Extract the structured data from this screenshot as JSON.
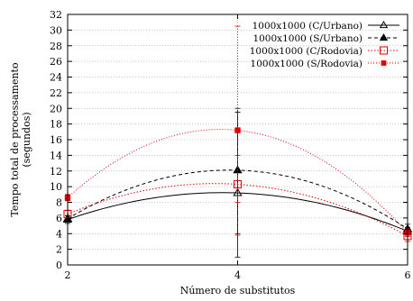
{
  "chart_data": {
    "type": "line",
    "title": "",
    "xlabel": "Número de substitutos",
    "ylabel_lines": [
      "Tempo total de processamento",
      "(segundos)"
    ],
    "x": [
      2,
      4,
      6
    ],
    "xlim": [
      2,
      6
    ],
    "ylim": [
      0,
      32
    ],
    "xticks": [
      2,
      4,
      6
    ],
    "yticks": [
      0,
      2,
      4,
      6,
      8,
      10,
      12,
      14,
      16,
      18,
      20,
      22,
      24,
      26,
      28,
      30,
      32
    ],
    "grid": true,
    "legend_position": "top-right",
    "series": [
      {
        "name": "1000x1000 (C/Urbano)",
        "values": [
          5.8,
          9.2,
          4.3
        ],
        "err_low": [
          5.3,
          1.0,
          3.8
        ],
        "err_high": [
          6.3,
          19.5,
          4.8
        ],
        "color": "#000000",
        "dash": "",
        "marker": "open-triangle"
      },
      {
        "name": "1000x1000 (S/Urbano)",
        "values": [
          5.9,
          12.1,
          4.6
        ],
        "err_low": [
          5.5,
          4.0,
          4.0
        ],
        "err_high": [
          6.3,
          20.0,
          5.2
        ],
        "color": "#000000",
        "dash": "4,3",
        "marker": "filled-triangle"
      },
      {
        "name": "1000x1000 (C/Rodovia)",
        "values": [
          6.5,
          10.3,
          3.7
        ],
        "err_low": [
          6.0,
          8.0,
          3.0
        ],
        "err_high": [
          7.0,
          14.0,
          4.4
        ],
        "color": "#e00000",
        "dash": "1.5,2",
        "marker": "open-square"
      },
      {
        "name": "1000x1000 (S/Rodovia)",
        "values": [
          8.6,
          17.2,
          4.1
        ],
        "err_low": [
          8.2,
          3.8,
          3.6
        ],
        "err_high": [
          9.0,
          30.5,
          4.7
        ],
        "color": "#e00000",
        "dash": "1,2",
        "marker": "filled-square"
      }
    ]
  }
}
